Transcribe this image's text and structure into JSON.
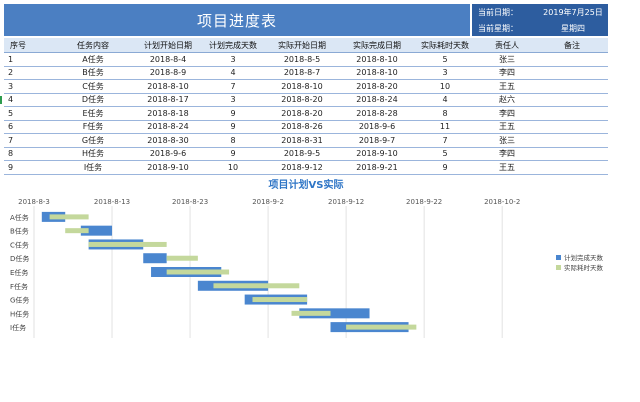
{
  "header": {
    "title": "项目进度表",
    "date_label": "当前日期：",
    "date_value": "2019年7月25日",
    "weekday_label": "当前星期：",
    "weekday_value": "星期四"
  },
  "table": {
    "columns": [
      "序号",
      "任务内容",
      "计划开始日期",
      "计划完成天数",
      "实际开始日期",
      "实际完成日期",
      "实际耗时天数",
      "责任人",
      "备注"
    ],
    "rows": [
      [
        "1",
        "A任务",
        "2018-8-4",
        "3",
        "2018-8-5",
        "2018-8-10",
        "5",
        "张三",
        ""
      ],
      [
        "2",
        "B任务",
        "2018-8-9",
        "4",
        "2018-8-7",
        "2018-8-10",
        "3",
        "李四",
        ""
      ],
      [
        "3",
        "C任务",
        "2018-8-10",
        "7",
        "2018-8-10",
        "2018-8-20",
        "10",
        "王五",
        ""
      ],
      [
        "4",
        "D任务",
        "2018-8-17",
        "3",
        "2018-8-20",
        "2018-8-24",
        "4",
        "赵六",
        ""
      ],
      [
        "5",
        "E任务",
        "2018-8-18",
        "9",
        "2018-8-20",
        "2018-8-28",
        "8",
        "李四",
        ""
      ],
      [
        "6",
        "F任务",
        "2018-8-24",
        "9",
        "2018-8-26",
        "2018-9-6",
        "11",
        "王五",
        ""
      ],
      [
        "7",
        "G任务",
        "2018-8-30",
        "8",
        "2018-8-31",
        "2018-9-7",
        "7",
        "张三",
        ""
      ],
      [
        "8",
        "H任务",
        "2018-9-6",
        "9",
        "2018-9-5",
        "2018-9-10",
        "5",
        "李四",
        ""
      ],
      [
        "9",
        "I任务",
        "2018-9-10",
        "10",
        "2018-9-12",
        "2018-9-21",
        "9",
        "王五",
        ""
      ]
    ]
  },
  "chart_data": {
    "type": "bar",
    "title": "项目计划VS实际",
    "x_ticks": [
      "2018-8-3",
      "2018-8-13",
      "2018-8-23",
      "2018-9-2",
      "2018-9-12",
      "2018-9-22",
      "2018-10-2"
    ],
    "xlim": [
      "2018-8-3",
      "2018-10-8"
    ],
    "categories": [
      "A任务",
      "B任务",
      "C任务",
      "D任务",
      "E任务",
      "F任务",
      "G任务",
      "H任务",
      "I任务"
    ],
    "series": [
      {
        "name": "计划完成天数",
        "color": "#4a86cf",
        "start": [
          "2018-8-4",
          "2018-8-9",
          "2018-8-10",
          "2018-8-17",
          "2018-8-18",
          "2018-8-24",
          "2018-8-30",
          "2018-9-6",
          "2018-9-10"
        ],
        "days": [
          3,
          4,
          7,
          3,
          9,
          9,
          8,
          9,
          10
        ]
      },
      {
        "name": "实际耗时天数",
        "color": "#c4d89c",
        "start": [
          "2018-8-5",
          "2018-8-7",
          "2018-8-10",
          "2018-8-20",
          "2018-8-20",
          "2018-8-26",
          "2018-8-31",
          "2018-9-5",
          "2018-9-12"
        ],
        "days": [
          5,
          3,
          10,
          4,
          8,
          11,
          7,
          5,
          9
        ]
      }
    ],
    "legend_position": "right",
    "grid": true
  }
}
